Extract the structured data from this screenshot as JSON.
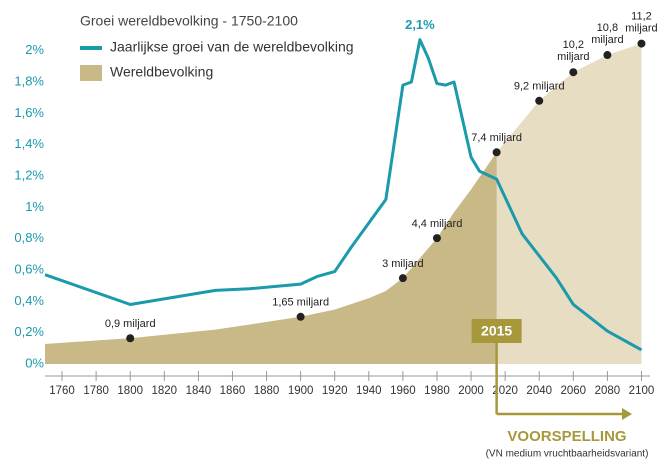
{
  "chart_data": {
    "type": "line_area",
    "title": "Groei wereldbevolking - 1750-2100",
    "xlim": [
      1750,
      2105
    ],
    "xticks": [
      1760,
      1780,
      1800,
      1820,
      1840,
      1860,
      1880,
      1900,
      1920,
      1940,
      1960,
      1980,
      2000,
      2020,
      2040,
      2060,
      2080,
      2100
    ],
    "ylim": [
      0,
      2.1
    ],
    "yticks": [
      {
        "value": 0,
        "label": "0%"
      },
      {
        "value": 0.2,
        "label": "0,2%"
      },
      {
        "value": 0.4,
        "label": "0,4%"
      },
      {
        "value": 0.6,
        "label": "0,6%"
      },
      {
        "value": 0.8,
        "label": "0,8%"
      },
      {
        "value": 1,
        "label": "1%"
      },
      {
        "value": 1.2,
        "label": "1,2%"
      },
      {
        "value": 1.4,
        "label": "1,4%"
      },
      {
        "value": 1.6,
        "label": "1,6%"
      },
      {
        "value": 1.8,
        "label": "1,8%"
      },
      {
        "value": 2,
        "label": "2%"
      }
    ],
    "y2lim": [
      0,
      11.5
    ],
    "series": [
      {
        "name": "Jaarlijkse groei van de wereldbevolking",
        "type": "line",
        "color": "#1a9aab",
        "x": [
          1750,
          1800,
          1850,
          1870,
          1900,
          1910,
          1920,
          1930,
          1950,
          1960,
          1965,
          1970,
          1975,
          1980,
          1985,
          1990,
          2000,
          2005,
          2015,
          2030,
          2050,
          2060,
          2080,
          2100
        ],
        "values": [
          0.57,
          0.38,
          0.47,
          0.48,
          0.51,
          0.56,
          0.59,
          0.75,
          1.05,
          1.78,
          1.8,
          2.07,
          1.95,
          1.79,
          1.78,
          1.8,
          1.32,
          1.23,
          1.18,
          0.83,
          0.55,
          0.38,
          0.21,
          0.09
        ],
        "value_labels": [
          null,
          null,
          null,
          null,
          null,
          null,
          null,
          null,
          null,
          null,
          null,
          "2,1%",
          null,
          null,
          null,
          null,
          null,
          null,
          null,
          null,
          null,
          null,
          null,
          null
        ]
      },
      {
        "name": "Wereldbevolking",
        "type": "area",
        "axis": "y2",
        "color": "#c9b987",
        "forecast_color": "#e7ddc2",
        "x": [
          1750,
          1800,
          1850,
          1900,
          1920,
          1940,
          1950,
          1960,
          1970,
          1980,
          1990,
          2000,
          2015,
          2040,
          2060,
          2080,
          2100
        ],
        "values": [
          0.7,
          0.9,
          1.2,
          1.65,
          1.9,
          2.3,
          2.55,
          3,
          3.7,
          4.4,
          5.3,
          6.1,
          7.4,
          9.2,
          10.2,
          10.8,
          11.2
        ],
        "value_labels": [
          null,
          "0,9 miljard",
          null,
          "1,65 miljard",
          null,
          null,
          null,
          "3 miljard",
          null,
          "4,4 miljard",
          null,
          null,
          "7,4 miljard",
          "9,2 miljard",
          "10,2 miljard",
          "10,8 miljard",
          "11,2 miljard"
        ]
      }
    ],
    "forecast_start": 2015,
    "forecast_label": "VOORSPELLING",
    "forecast_note": "(VN medium vruchtbaarheidsvariant)",
    "forecast_color": "#a8983c"
  }
}
